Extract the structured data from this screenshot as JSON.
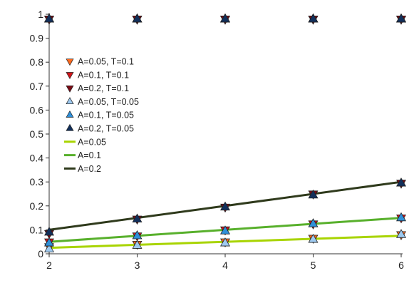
{
  "chart_data": {
    "type": "scatter",
    "title": "",
    "xlabel": "",
    "ylabel": "",
    "xlim": [
      2,
      6
    ],
    "ylim": [
      0,
      1
    ],
    "x_ticks": [
      "2",
      "3",
      "4",
      "5",
      "6"
    ],
    "y_ticks": [
      "0",
      "0.1",
      "0.2",
      "0.3",
      "0.4",
      "0.5",
      "0.6",
      "0.7",
      "0.8",
      "0.9",
      "1"
    ],
    "grid": false,
    "legend_position": "upper-left",
    "series": [
      {
        "name": "A=0.05, T=0.1",
        "kind": "marker",
        "marker": "triangle-down",
        "color": "#ff6a1f",
        "x": [
          2,
          3,
          4,
          5,
          6
        ],
        "top_y": [
          0.98,
          0.98,
          0.98,
          0.98,
          0.98
        ],
        "y": [
          0.03,
          0.04,
          0.05,
          0.065,
          0.08
        ]
      },
      {
        "name": "A=0.1,   T=0.1",
        "kind": "marker",
        "marker": "triangle-down",
        "color": "#d0141a",
        "x": [
          2,
          3,
          4,
          5,
          6
        ],
        "top_y": [
          0.98,
          0.98,
          0.98,
          0.98,
          0.98
        ],
        "y": [
          0.05,
          0.075,
          0.1,
          0.125,
          0.15
        ]
      },
      {
        "name": "A=0.2,   T=0.1",
        "kind": "marker",
        "marker": "triangle-down",
        "color": "#7a0a14",
        "x": [
          2,
          3,
          4,
          5,
          6
        ],
        "top_y": [
          0.98,
          0.98,
          0.98,
          0.98,
          0.98
        ],
        "y": [
          0.085,
          0.145,
          0.195,
          0.25,
          0.295
        ]
      },
      {
        "name": "A=0.05, T=0.05",
        "kind": "marker",
        "marker": "triangle-up",
        "color": "#9ec9ef",
        "x": [
          2,
          3,
          4,
          5,
          6
        ],
        "top_y": [
          0.98,
          0.98,
          0.98,
          0.98,
          0.98
        ],
        "y": [
          0.02,
          0.035,
          0.045,
          0.06,
          0.08
        ]
      },
      {
        "name": "A=0.1,   T=0.05",
        "kind": "marker",
        "marker": "triangle-up",
        "color": "#2f8fd8",
        "x": [
          2,
          3,
          4,
          5,
          6
        ],
        "top_y": [
          0.98,
          0.98,
          0.98,
          0.98,
          0.98
        ],
        "y": [
          0.045,
          0.075,
          0.095,
          0.125,
          0.15
        ]
      },
      {
        "name": "A=0.2,   T=0.05",
        "kind": "marker",
        "marker": "triangle-up",
        "color": "#12305c",
        "x": [
          2,
          3,
          4,
          5,
          6
        ],
        "top_y": [
          0.98,
          0.98,
          0.98,
          0.98,
          0.98
        ],
        "y": [
          0.09,
          0.145,
          0.195,
          0.245,
          0.295
        ]
      },
      {
        "name": "A=0.05",
        "kind": "line",
        "color": "#a8d400",
        "x": [
          2,
          6
        ],
        "y": [
          0.025,
          0.075
        ]
      },
      {
        "name": "A=0.1",
        "kind": "line",
        "color": "#58b02c",
        "x": [
          2,
          6
        ],
        "y": [
          0.05,
          0.15
        ]
      },
      {
        "name": "A=0.2",
        "kind": "line",
        "color": "#2f3a1c",
        "x": [
          2,
          6
        ],
        "y": [
          0.1,
          0.3
        ]
      }
    ]
  }
}
